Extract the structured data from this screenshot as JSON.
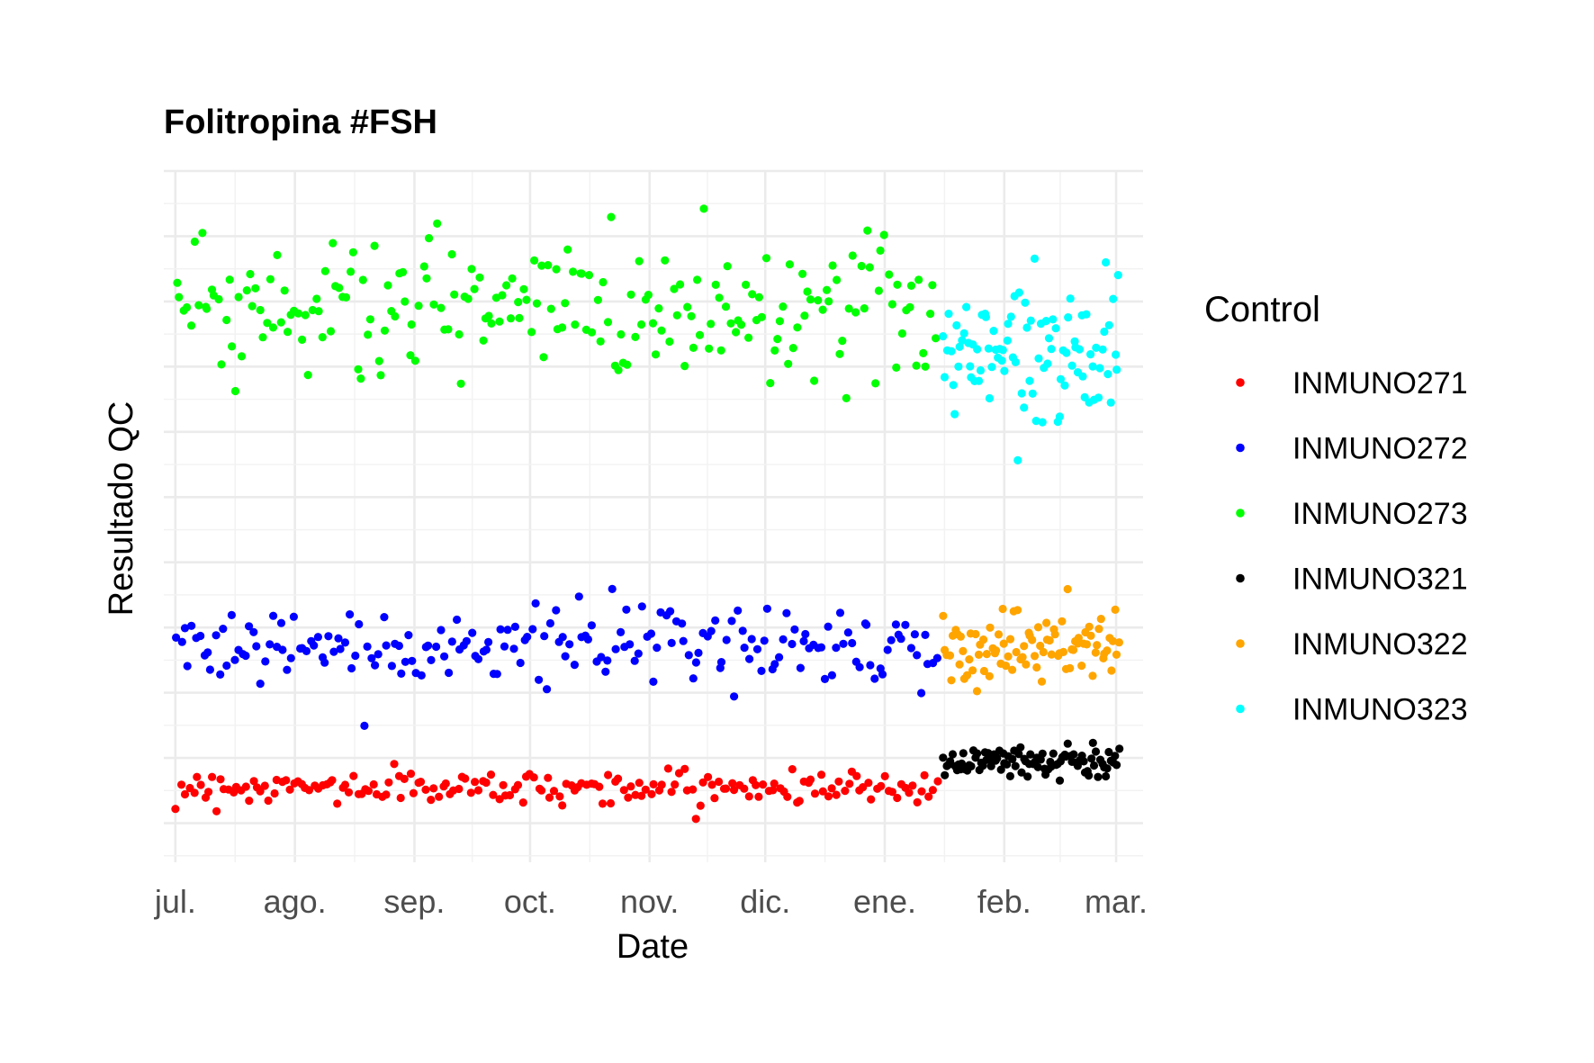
{
  "chart_data": {
    "type": "scatter",
    "title": "Folitropina #FSH",
    "xlabel": "Date",
    "ylabel": "Resultado QC",
    "x_type": "date",
    "x_range": [
      "2023-06-28",
      "2024-03-08"
    ],
    "x_ticks": [
      {
        "date": "2023-07-01",
        "label": "jul."
      },
      {
        "date": "2023-08-01",
        "label": "ago."
      },
      {
        "date": "2023-09-01",
        "label": "sep."
      },
      {
        "date": "2023-10-01",
        "label": "oct."
      },
      {
        "date": "2023-11-01",
        "label": "nov."
      },
      {
        "date": "2023-12-01",
        "label": "dic."
      },
      {
        "date": "2024-01-01",
        "label": "ene."
      },
      {
        "date": "2024-02-01",
        "label": "feb."
      },
      {
        "date": "2024-03-01",
        "label": "mar."
      }
    ],
    "y_range": [
      -0.6,
      10.0
    ],
    "y_ticks_labeled": false,
    "grid": true,
    "legend": {
      "title": "Control",
      "placement": "right",
      "entries": [
        {
          "name": "INMUNO271",
          "color": "#ff0000"
        },
        {
          "name": "INMUNO272",
          "color": "#0000ff"
        },
        {
          "name": "INMUNO273",
          "color": "#00ff00"
        },
        {
          "name": "INMUNO321",
          "color": "#000000"
        },
        {
          "name": "INMUNO322",
          "color": "#ffa500"
        },
        {
          "name": "INMUNO323",
          "color": "#00ffff"
        }
      ]
    },
    "series": [
      {
        "name": "INMUNO271",
        "color": "#ff0000",
        "x_start": "2023-07-01",
        "x_end": "2024-01-15",
        "y_mean": 0.55,
        "y_spread": 0.12,
        "n": 190
      },
      {
        "name": "INMUNO272",
        "color": "#0000ff",
        "x_start": "2023-07-01",
        "x_end": "2024-01-15",
        "y_mean": 2.75,
        "y_spread": 0.3,
        "n": 200
      },
      {
        "name": "INMUNO273",
        "color": "#00ff00",
        "x_start": "2023-07-01",
        "x_end": "2024-01-15",
        "y_mean": 7.9,
        "y_spread": 0.55,
        "n": 220
      },
      {
        "name": "INMUNO321",
        "color": "#000000",
        "x_start": "2024-01-16",
        "x_end": "2024-03-02",
        "y_mean": 0.95,
        "y_spread": 0.14,
        "n": 95
      },
      {
        "name": "INMUNO322",
        "color": "#ffa500",
        "x_start": "2024-01-16",
        "x_end": "2024-03-02",
        "y_mean": 2.7,
        "y_spread": 0.28,
        "n": 90
      },
      {
        "name": "INMUNO323",
        "color": "#00ffff",
        "x_start": "2024-01-16",
        "x_end": "2024-03-02",
        "y_mean": 7.3,
        "y_spread": 0.45,
        "n": 95
      }
    ]
  }
}
